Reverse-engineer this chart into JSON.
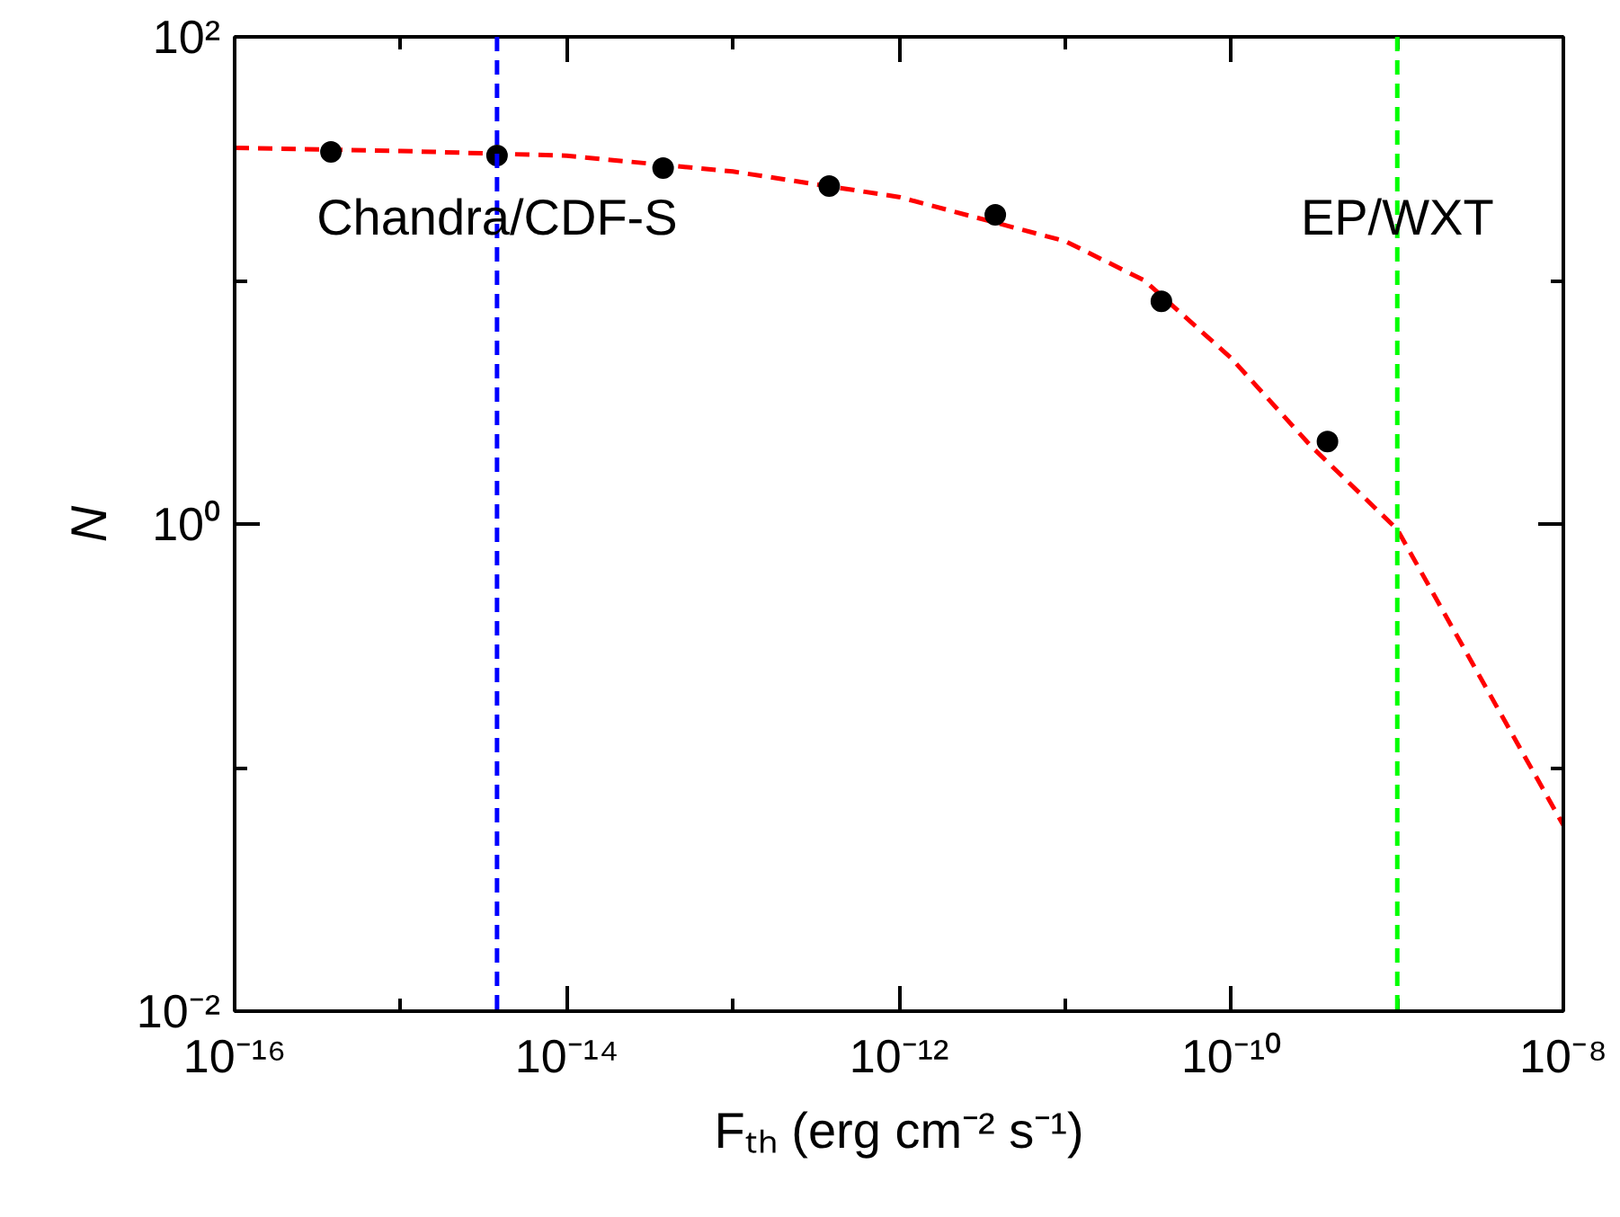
{
  "chart_data": {
    "type": "scatter",
    "xlabel": "Fₜₕ (erg cm⁻² s⁻¹)",
    "ylabel": "N",
    "log": "xy",
    "grid": false,
    "xlim": [
      1e-16,
      1e-08
    ],
    "ylim": [
      0.01,
      100
    ],
    "xticks": [
      {
        "value": 1e-16,
        "label": "10⁻¹⁶"
      },
      {
        "value": 1e-15,
        "label": null
      },
      {
        "value": 1e-14,
        "label": "10⁻¹⁴"
      },
      {
        "value": 1e-13,
        "label": null
      },
      {
        "value": 1e-12,
        "label": "10⁻¹²"
      },
      {
        "value": 1e-11,
        "label": null
      },
      {
        "value": 1e-10,
        "label": "10⁻¹⁰"
      },
      {
        "value": 1e-09,
        "label": null
      },
      {
        "value": 1e-08,
        "label": "10⁻⁸"
      }
    ],
    "yticks": [
      {
        "value": 0.01,
        "label": "10⁻²"
      },
      {
        "value": 0.1,
        "label": null
      },
      {
        "value": 1,
        "label": "10⁰"
      },
      {
        "value": 10,
        "label": null
      },
      {
        "value": 100,
        "label": "10²"
      }
    ],
    "series": [
      {
        "type": "line",
        "color": "#ff0000",
        "line_style": "dashed",
        "marker": "none",
        "x": [
          1e-16,
          1e-15,
          1e-14,
          1e-13,
          1e-12,
          1e-11,
          3e-11,
          1e-10,
          3e-10,
          1e-09,
          3e-09,
          1e-08
        ],
        "values": [
          35,
          34,
          32.5,
          28,
          22,
          14.5,
          10,
          4.8,
          2.1,
          0.95,
          0.25,
          0.058
        ]
      },
      {
        "color": "#000000",
        "marker": "circle",
        "x": [
          3.8e-16,
          3.8e-15,
          3.8e-14,
          3.8e-13,
          3.8e-12,
          3.8e-11,
          3.8e-10
        ],
        "values": [
          33.7,
          32.6,
          28.9,
          24.4,
          18.6,
          8.2,
          2.18
        ]
      }
    ],
    "ref_lines": [
      {
        "axis": "x",
        "value": 3.8e-15,
        "label": "Chandra/CDF-S",
        "color": "#0000ff",
        "line_style": "dashed"
      },
      {
        "axis": "x",
        "value": 1e-09,
        "label": "EP/WXT",
        "color": "#00ff00",
        "line_style": "dashed"
      }
    ]
  }
}
